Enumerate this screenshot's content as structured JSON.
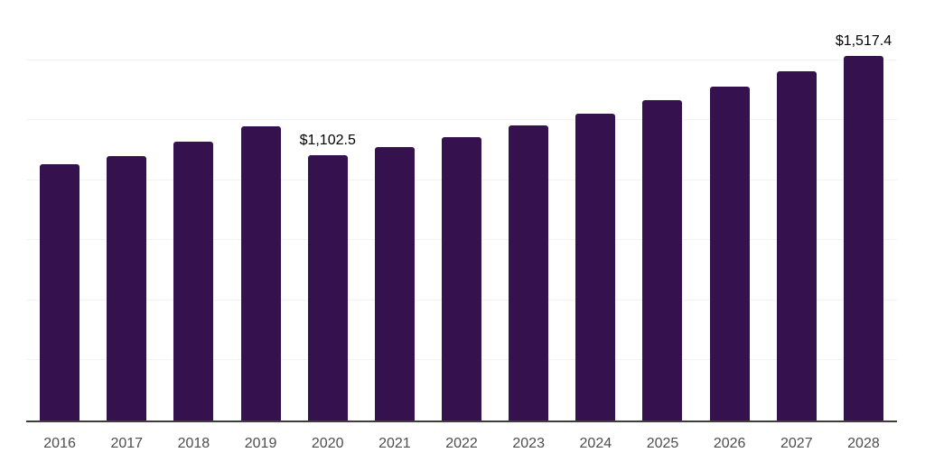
{
  "chart_data": {
    "type": "bar",
    "title": "",
    "xlabel": "",
    "ylabel": "",
    "categories": [
      "2016",
      "2017",
      "2018",
      "2019",
      "2020",
      "2021",
      "2022",
      "2023",
      "2024",
      "2025",
      "2026",
      "2027",
      "2028"
    ],
    "values": [
      1067,
      1099,
      1160,
      1224,
      1102.5,
      1139,
      1181,
      1227,
      1276,
      1332,
      1390,
      1453,
      1517.4
    ],
    "value_labels": [
      "",
      "",
      "",
      "",
      "$1,102.5",
      "",
      "",
      "",
      "",
      "",
      "",
      "",
      "$1,517.4"
    ],
    "ylim": [
      0,
      1750
    ],
    "grid_step": 250,
    "grid": true,
    "legend": false,
    "y_axis_tick_labels_visible": false,
    "colors": {
      "bar": "#35124D",
      "grid_line": "#F2F2F2",
      "axis_line": "#3D3D3D",
      "tick_label": "#4D4D4D",
      "value_label": "#000000",
      "background": "#FFFFFF"
    }
  }
}
